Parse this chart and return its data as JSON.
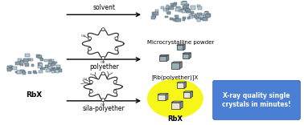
{
  "background_color": "#ffffff",
  "fig_width": 3.78,
  "fig_height": 1.56,
  "dpi": 100,
  "rbx_label": "RbX",
  "label_solvent": "solvent",
  "label_polyether": "polyether",
  "label_silapolyether": "sila-polyether",
  "label_micro": "Microcrystalline powder",
  "label_rbpolyether": "[Rb(polyether)]X",
  "label_rbx_out": "RbX",
  "box_label": "X-ray quality single\ncrystals in minutes!",
  "box_color": "#4a7fd4",
  "box_text_color": "#ffffff",
  "arrow_color": "#000000",
  "text_color": "#000000",
  "crystal_glow_color": "#f5f500",
  "powder_color_dark": "#8a9ea8",
  "powder_color_light": "#b8ccd4",
  "cube_color": "#9ab0b8",
  "crystal_color": "#e8e8d0"
}
